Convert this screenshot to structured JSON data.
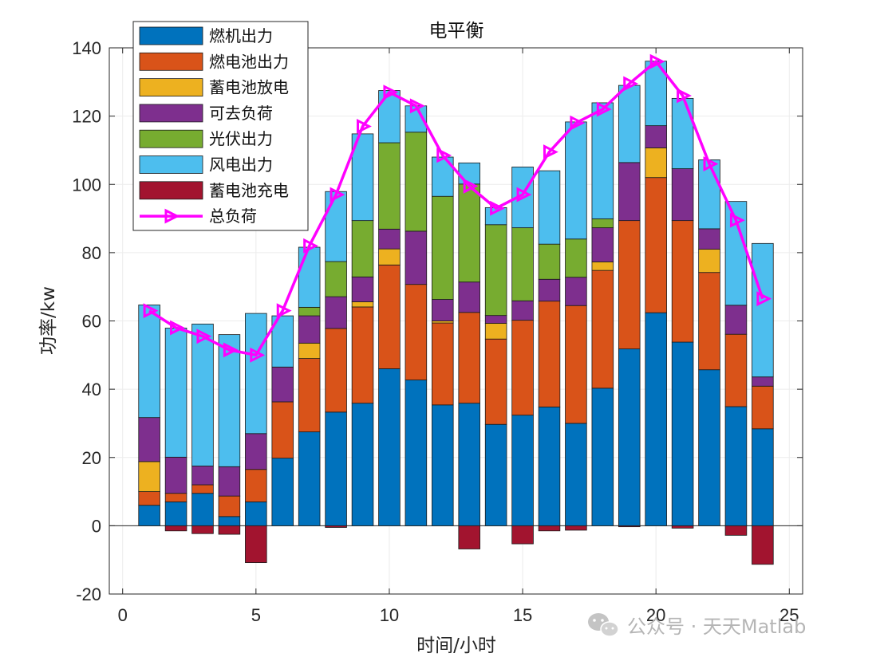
{
  "chart_data": {
    "type": "bar",
    "stacked": true,
    "title": "电平衡",
    "xlabel": "时间/小时",
    "ylabel": "功率/kw",
    "xlim": [
      -0.5,
      25.5
    ],
    "ylim": [
      -20,
      140
    ],
    "xticks": [
      0,
      5,
      10,
      15,
      20,
      25
    ],
    "yticks": [
      -20,
      0,
      20,
      40,
      60,
      80,
      100,
      120,
      140
    ],
    "grid": true,
    "legend_position": "top-left",
    "categories": [
      1,
      2,
      3,
      4,
      5,
      6,
      7,
      8,
      9,
      10,
      11,
      12,
      13,
      14,
      15,
      16,
      17,
      18,
      19,
      20,
      21,
      22,
      23,
      24
    ],
    "series": [
      {
        "name": "燃机出力",
        "color": "#0072BD",
        "values": [
          6,
          7,
          9.5,
          2.7,
          7,
          19.8,
          27.5,
          33.3,
          35.9,
          46,
          42.7,
          35.4,
          35.9,
          29.7,
          32.4,
          34.8,
          30,
          40.3,
          51.8,
          62.4,
          53.8,
          45.7,
          34.9,
          28.4
        ]
      },
      {
        "name": "燃电池出力",
        "color": "#D95319",
        "values": [
          4,
          2.5,
          2.5,
          6,
          9.5,
          16.5,
          21.5,
          24.5,
          28.2,
          30.4,
          28,
          24,
          26.6,
          25,
          27.8,
          31,
          34.5,
          34.5,
          37.6,
          39.6,
          35.6,
          28.5,
          21.2,
          12.5
        ]
      },
      {
        "name": "蓄电池放电",
        "color": "#EDB120",
        "values": [
          8.8,
          0,
          0,
          0,
          0,
          0,
          4.5,
          0,
          1.5,
          4.7,
          0,
          0.6,
          0,
          4.6,
          0,
          0,
          0,
          2.5,
          0,
          8.7,
          0,
          6.8,
          0,
          0
        ]
      },
      {
        "name": "可去负荷",
        "color": "#7E2F8E",
        "values": [
          12.9,
          10.6,
          5.5,
          8.6,
          10.5,
          10.2,
          8,
          9.3,
          7.3,
          5.8,
          15.6,
          6.3,
          8.9,
          2.3,
          5.7,
          6.4,
          8.3,
          10,
          17,
          6.5,
          15.2,
          6,
          8.5,
          2.7
        ]
      },
      {
        "name": "光伏出力",
        "color": "#77AC30",
        "values": [
          0,
          0,
          0,
          0,
          0,
          0,
          2.5,
          10.3,
          16.5,
          25.3,
          29,
          30.2,
          28.7,
          26.6,
          21.4,
          10.3,
          11.2,
          2.6,
          0,
          0,
          0,
          0,
          0,
          0
        ]
      },
      {
        "name": "风电出力",
        "color": "#4DBEEE",
        "values": [
          33,
          37.8,
          41.6,
          38.7,
          35.2,
          15,
          17.6,
          20.5,
          25.4,
          15.3,
          7.7,
          11.5,
          6.2,
          5,
          17.8,
          21.5,
          34.3,
          34,
          22.6,
          18.9,
          20.6,
          20.2,
          30.4,
          39.1
        ]
      },
      {
        "name": "蓄电池充电",
        "color": "#A2142F",
        "values": [
          0,
          -1.5,
          -2.3,
          -2.5,
          -10.8,
          0,
          0,
          -0.5,
          0,
          0,
          0,
          0,
          -6.8,
          0,
          -5.3,
          -1.5,
          -1.3,
          0,
          -0.3,
          0,
          -0.7,
          0,
          -2.8,
          -11.3
        ]
      }
    ],
    "line": {
      "name": "总负荷",
      "color": "#FF00FF",
      "marker": "triangle-right",
      "values": [
        63,
        58,
        55.5,
        51.5,
        50,
        63,
        82,
        97,
        117,
        127,
        123,
        108.5,
        99.5,
        93,
        97,
        109.5,
        118,
        122,
        129.5,
        136,
        126,
        106,
        89.5,
        66.5
      ]
    }
  },
  "watermark": {
    "text": "公众号 · 天天Matlab",
    "icon": "wechat-icon"
  }
}
